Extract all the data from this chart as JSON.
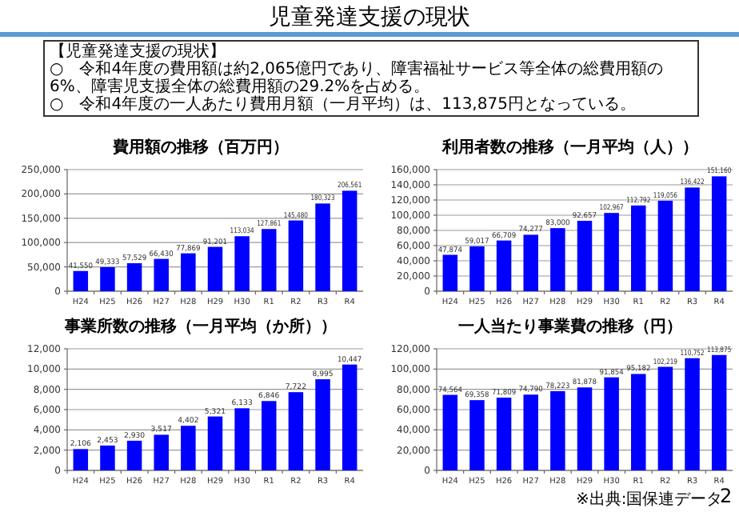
{
  "chart_data": [
    {
      "type": "other",
      "title": "児童発達支援の現状",
      "annotations": [
        "【児童発達支援の現状】",
        "○　令和4年度の費用額は約2,065億円であり、障害福祉サービス等全体の総費用額の6%、障害児支援全体の総費用額の29.2%を占める。",
        "○　令和4年度の一人あたり費用月額（一月平均）は、113,875円となっている。"
      ]
    },
    {
      "type": "bar",
      "title": "費用額の推移（百万円）",
      "categories": [
        "H24",
        "H25",
        "H26",
        "H27",
        "H28",
        "H29",
        "H30",
        "R1",
        "R2",
        "R3",
        "R4"
      ],
      "values": [
        41550,
        49333,
        57529,
        66430,
        77869,
        91201,
        113034,
        127861,
        145480,
        180323,
        206561
      ],
      "value_labels": [
        "41,550",
        "49,333",
        "57,529",
        "66,430",
        "77,869",
        "91,201",
        "113,034",
        "127,861",
        "145,480",
        "180,323",
        "206,561"
      ],
      "color": "#0000ff",
      "ylim": [
        0,
        250000
      ],
      "yticks": [
        {
          "value": 0,
          "label": "0"
        },
        {
          "value": 50000,
          "label": "50,000"
        },
        {
          "value": 100000,
          "label": "100,000"
        },
        {
          "value": 150000,
          "label": "150,000"
        },
        {
          "value": 200000,
          "label": "200,000"
        },
        {
          "value": 250000,
          "label": "250,000"
        }
      ],
      "grid": "y"
    },
    {
      "type": "bar",
      "title": "利用者数の推移（一月平均（人））",
      "categories": [
        "H24",
        "H25",
        "H26",
        "H27",
        "H28",
        "H29",
        "H30",
        "R1",
        "R2",
        "R3",
        "R4"
      ],
      "values": [
        47874,
        59017,
        66709,
        74277,
        83000,
        92657,
        102967,
        112792,
        119056,
        136422,
        151160
      ],
      "value_labels": [
        "47,874",
        "59,017",
        "66,709",
        "74,277",
        "83,000",
        "92,657",
        "102,967",
        "112,792",
        "119,056",
        "136,422",
        "151,160"
      ],
      "color": "#0000ff",
      "ylim": [
        0,
        160000
      ],
      "yticks": [
        {
          "value": 0,
          "label": "0"
        },
        {
          "value": 20000,
          "label": "20,000"
        },
        {
          "value": 40000,
          "label": "40,000"
        },
        {
          "value": 60000,
          "label": "60,000"
        },
        {
          "value": 80000,
          "label": "80,000"
        },
        {
          "value": 100000,
          "label": "100,000"
        },
        {
          "value": 120000,
          "label": "120,000"
        },
        {
          "value": 140000,
          "label": "140,000"
        },
        {
          "value": 160000,
          "label": "160,000"
        }
      ],
      "grid": "y"
    },
    {
      "type": "bar",
      "title": "事業所数の推移（一月平均（か所））",
      "categories": [
        "H24",
        "H25",
        "H26",
        "H27",
        "H28",
        "H29",
        "H30",
        "R1",
        "R2",
        "R3",
        "R4"
      ],
      "values": [
        2106,
        2453,
        2930,
        3517,
        4402,
        5321,
        6133,
        6846,
        7722,
        8995,
        10447
      ],
      "value_labels": [
        "2,106",
        "2,453",
        "2,930",
        "3,517",
        "4,402",
        "5,321",
        "6,133",
        "6,846",
        "7,722",
        "8,995",
        "10,447"
      ],
      "color": "#0000ff",
      "ylim": [
        0,
        12000
      ],
      "yticks": [
        {
          "value": 0,
          "label": "0"
        },
        {
          "value": 2000,
          "label": "2,000"
        },
        {
          "value": 4000,
          "label": "4,000"
        },
        {
          "value": 6000,
          "label": "6,000"
        },
        {
          "value": 8000,
          "label": "8,000"
        },
        {
          "value": 10000,
          "label": "10,000"
        },
        {
          "value": 12000,
          "label": "12,000"
        }
      ],
      "grid": "y"
    },
    {
      "type": "bar",
      "title": "一人当たり事業費の推移（円）",
      "categories": [
        "H24",
        "H25",
        "H26",
        "H27",
        "H28",
        "H29",
        "H30",
        "R1",
        "R2",
        "R3",
        "R4"
      ],
      "values": [
        74564,
        69358,
        71809,
        74790,
        78223,
        81878,
        91854,
        95182,
        102219,
        110752,
        113875
      ],
      "value_labels": [
        "74,564",
        "69,358",
        "71,809",
        "74,790",
        "78,223",
        "81,878",
        "91,854",
        "95,182",
        "102,219",
        "110,752",
        "113,875"
      ],
      "color": "#0000ff",
      "ylim": [
        0,
        120000
      ],
      "yticks": [
        {
          "value": 0,
          "label": "0"
        },
        {
          "value": 20000,
          "label": "20,000"
        },
        {
          "value": 40000,
          "label": "40,000"
        },
        {
          "value": 60000,
          "label": "60,000"
        },
        {
          "value": 80000,
          "label": "80,000"
        },
        {
          "value": 100000,
          "label": "100,000"
        },
        {
          "value": 120000,
          "label": "120,000"
        }
      ],
      "grid": "y",
      "annotations": [
        "※出典:国保連データ",
        "2"
      ]
    }
  ]
}
